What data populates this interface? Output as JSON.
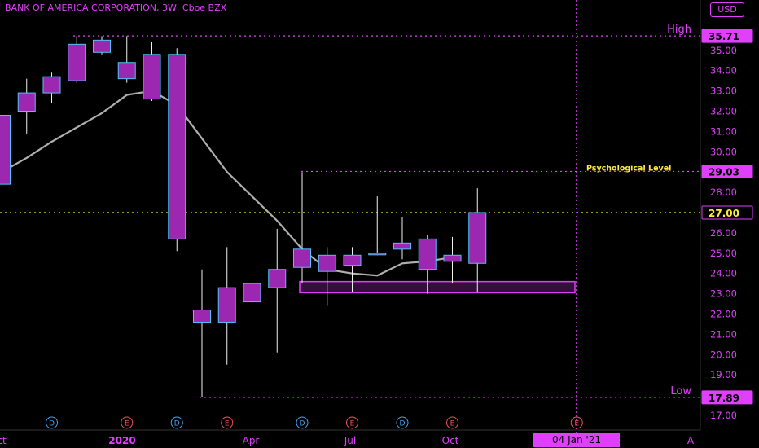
{
  "header": {
    "symbol_title": "BANK OF AMERICA CORPORATION, 3W, Cboe BZX",
    "currency_button": "USD"
  },
  "colors": {
    "accent": "#e040fb",
    "candle_fill": "#9c27b0",
    "candle_border": "#4fc3f7",
    "moving_average": "#b0b0b0",
    "level_line": "#ffeb3b"
  },
  "chart_data": {
    "type": "candlestick",
    "title": "BANK OF AMERICA CORPORATION, 3W, Cboe BZX",
    "ylim": [
      16.5,
      36.8
    ],
    "y_ticks": [
      17.0,
      18.0,
      19.0,
      20.0,
      21.0,
      22.0,
      23.0,
      24.0,
      25.0,
      26.0,
      27.0,
      28.0,
      29.0,
      30.0,
      31.0,
      32.0,
      33.0,
      34.0,
      35.0
    ],
    "x_ticks": [
      "ct",
      "2020",
      "Apr",
      "Jul",
      "Oct",
      "A"
    ],
    "crosshair_date_label": "04 Jan '21",
    "candles": [
      {
        "o": 28.4,
        "h": 31.8,
        "l": 28.4,
        "c": 31.8
      },
      {
        "o": 32.0,
        "h": 33.6,
        "l": 30.9,
        "c": 32.9
      },
      {
        "o": 32.9,
        "h": 33.9,
        "l": 32.4,
        "c": 33.7
      },
      {
        "o": 33.5,
        "h": 35.7,
        "l": 33.4,
        "c": 35.3
      },
      {
        "o": 35.5,
        "h": 35.7,
        "l": 34.8,
        "c": 34.9
      },
      {
        "o": 34.4,
        "h": 35.7,
        "l": 33.4,
        "c": 33.6
      },
      {
        "o": 34.8,
        "h": 35.4,
        "l": 32.5,
        "c": 32.6
      },
      {
        "o": 34.8,
        "h": 35.1,
        "l": 25.1,
        "c": 25.7
      },
      {
        "o": 21.6,
        "h": 24.2,
        "l": 17.9,
        "c": 22.2
      },
      {
        "o": 21.6,
        "h": 25.3,
        "l": 19.5,
        "c": 23.3
      },
      {
        "o": 22.6,
        "h": 25.3,
        "l": 21.5,
        "c": 23.5
      },
      {
        "o": 23.3,
        "h": 26.2,
        "l": 20.1,
        "c": 24.2
      },
      {
        "o": 24.3,
        "h": 29.0,
        "l": 23.5,
        "c": 25.2
      },
      {
        "o": 24.9,
        "h": 25.3,
        "l": 22.4,
        "c": 24.1
      },
      {
        "o": 24.4,
        "h": 25.3,
        "l": 23.1,
        "c": 24.9
      },
      {
        "o": 25.0,
        "h": 27.8,
        "l": 24.9,
        "c": 25.0
      },
      {
        "o": 25.5,
        "h": 26.8,
        "l": 24.7,
        "c": 25.2
      },
      {
        "o": 24.2,
        "h": 25.9,
        "l": 23.0,
        "c": 25.7
      },
      {
        "o": 24.6,
        "h": 25.8,
        "l": 23.5,
        "c": 24.9
      },
      {
        "o": 24.5,
        "h": 28.2,
        "l": 23.1,
        "c": 27.0
      }
    ],
    "moving_average": [
      [
        0,
        29.0
      ],
      [
        1,
        29.7
      ],
      [
        2,
        30.5
      ],
      [
        3,
        31.2
      ],
      [
        4,
        31.9
      ],
      [
        5,
        32.8
      ],
      [
        6,
        33.0
      ],
      [
        7,
        32.3
      ],
      [
        9,
        29.0
      ],
      [
        11,
        26.6
      ],
      [
        12,
        25.2
      ],
      [
        13,
        24.2
      ],
      [
        14,
        24.0
      ],
      [
        15,
        23.9
      ],
      [
        16,
        24.5
      ],
      [
        17,
        24.6
      ],
      [
        18,
        24.8
      ]
    ],
    "price_labels": [
      {
        "value": 35.71,
        "text": "35.71",
        "side_label": "High"
      },
      {
        "value": 29.03,
        "text": "29.03",
        "side_label": "Psychological Level"
      },
      {
        "value": 27.0,
        "text": "27.00",
        "side_label": ""
      },
      {
        "value": 17.89,
        "text": "17.89",
        "side_label": "Low"
      }
    ],
    "support_zone": {
      "top": 23.6,
      "bottom": 23.05
    },
    "event_markers": [
      {
        "candle": 2,
        "letter": "D"
      },
      {
        "candle": 5,
        "letter": "E"
      },
      {
        "candle": 7,
        "letter": "D"
      },
      {
        "candle": 9,
        "letter": "E"
      },
      {
        "candle": 12,
        "letter": "D"
      },
      {
        "candle": 14,
        "letter": "E"
      },
      {
        "candle": 16,
        "letter": "D"
      },
      {
        "candle": 18,
        "letter": "E"
      },
      {
        "candle": 23,
        "letter": "E"
      }
    ]
  }
}
